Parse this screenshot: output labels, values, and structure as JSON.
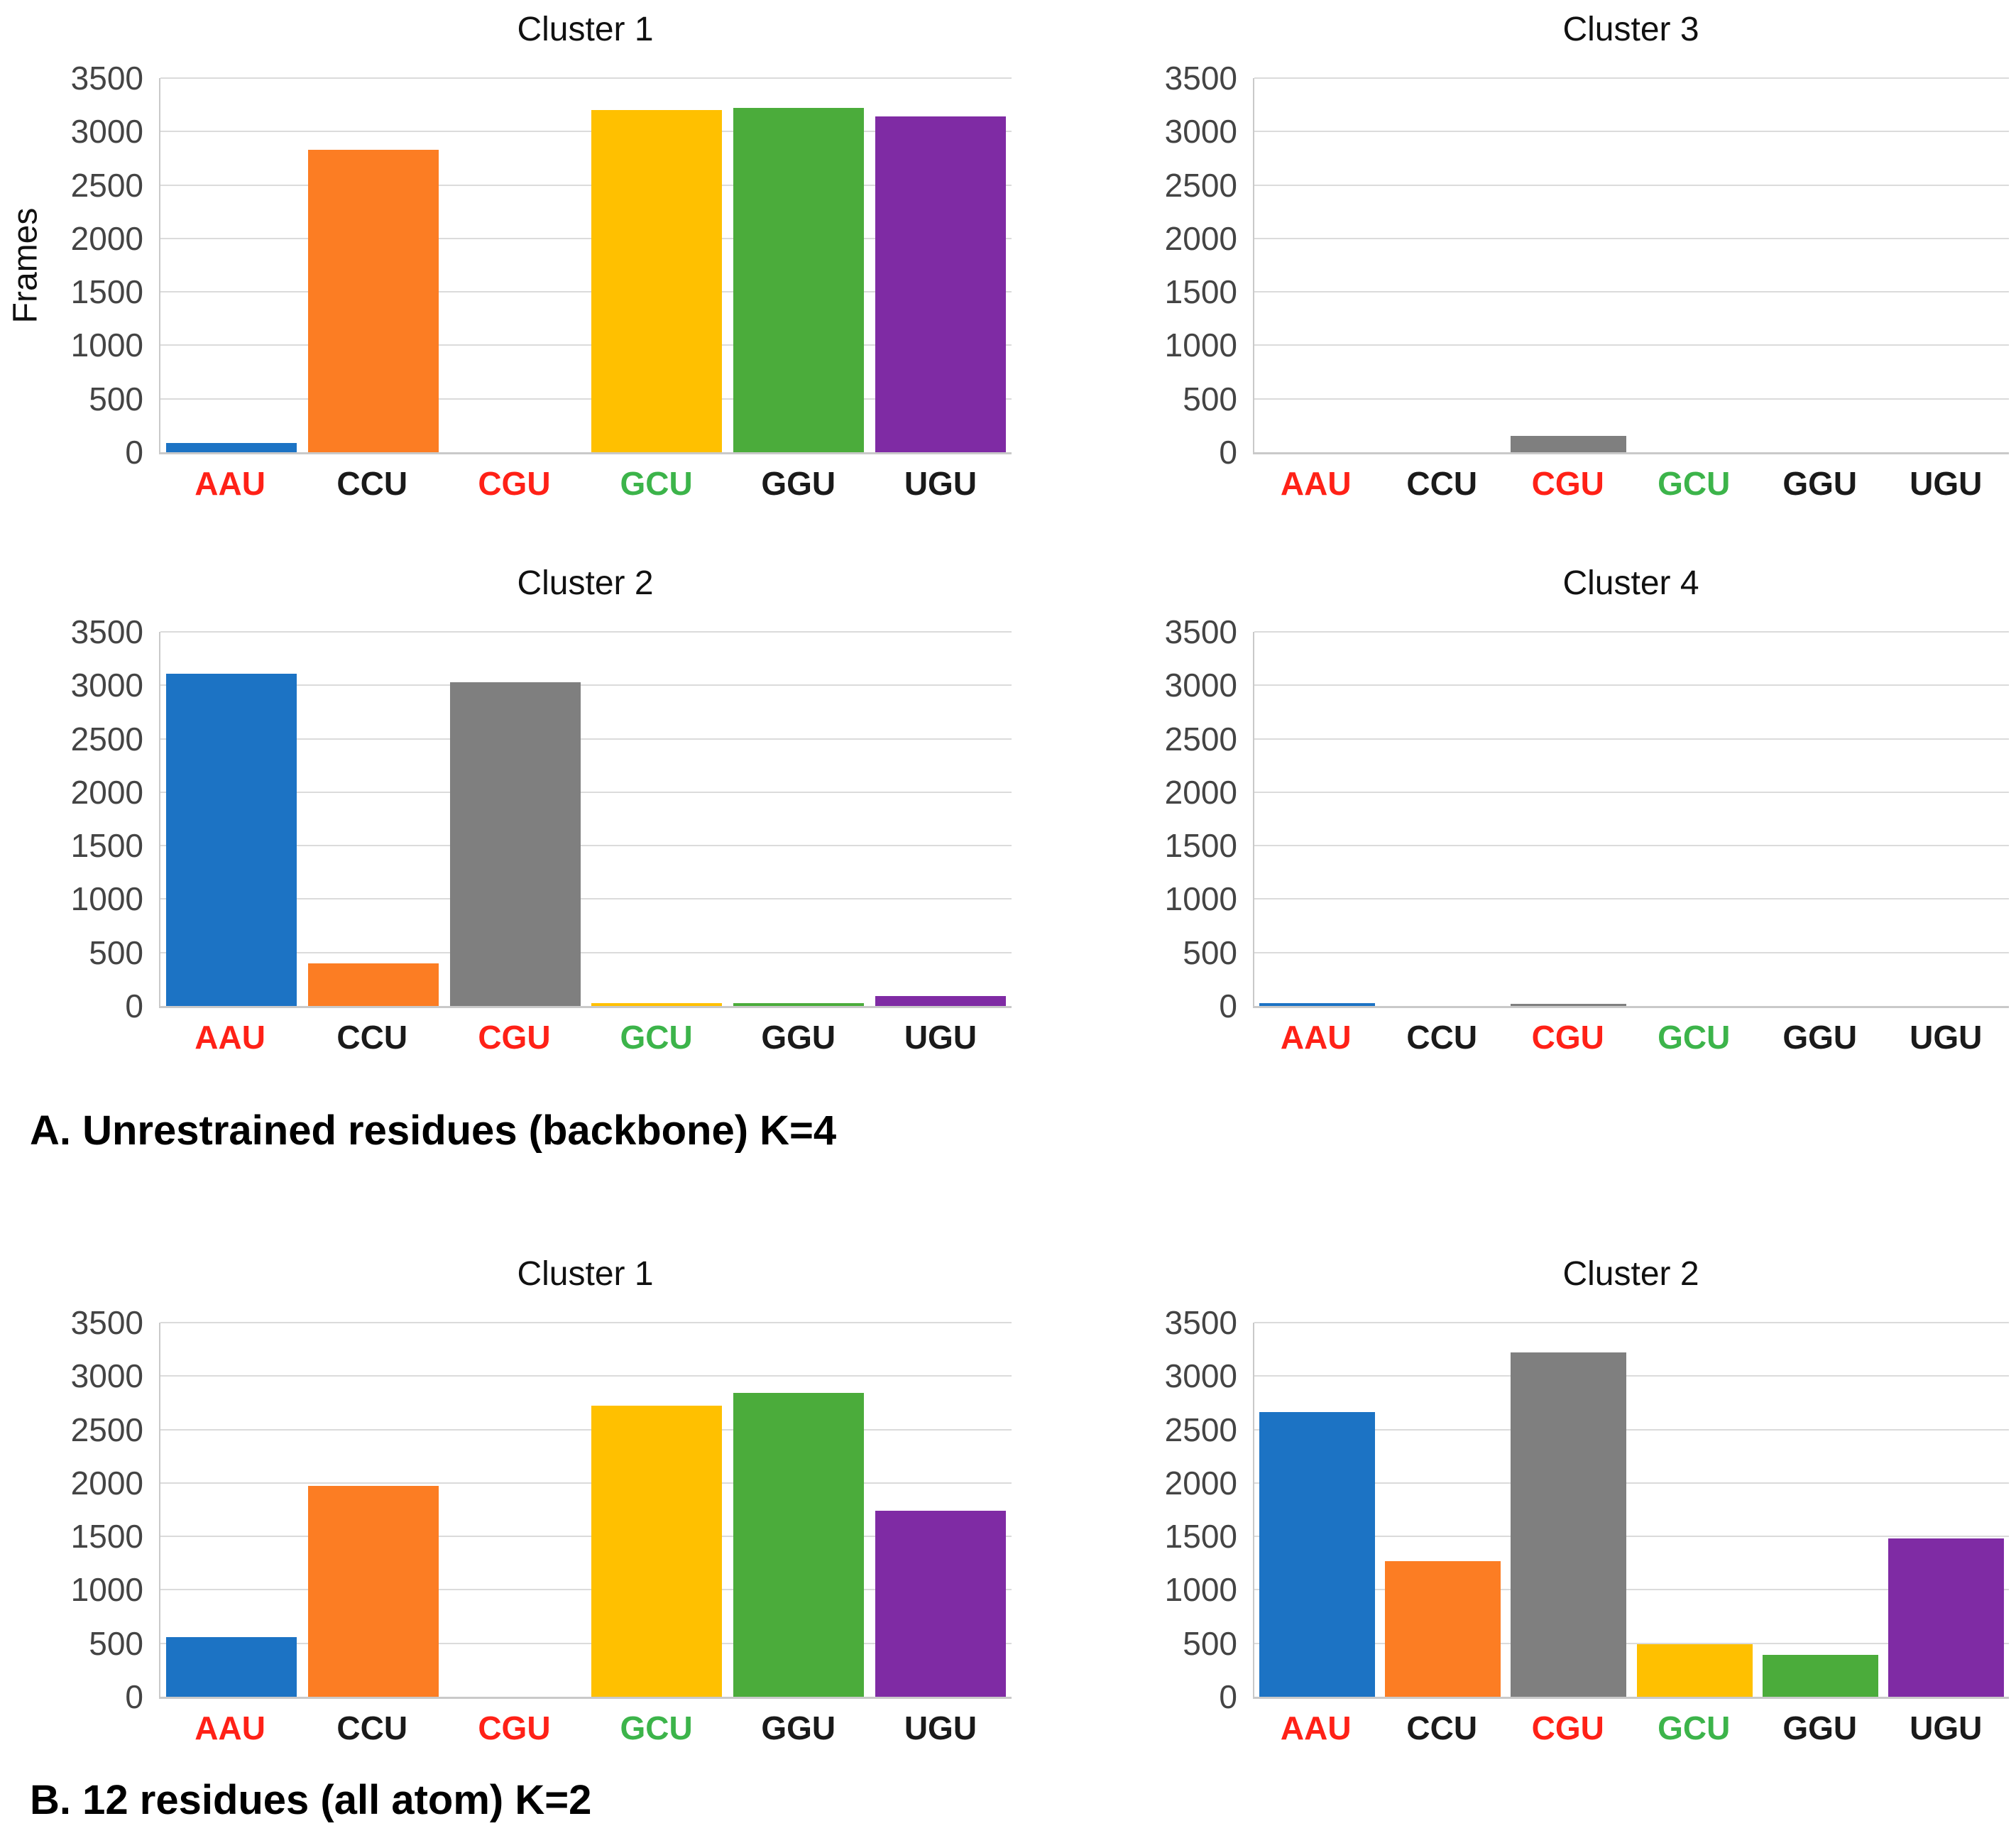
{
  "figure": {
    "section_a_label": "A. Unrestrained residues (backbone) K=4",
    "section_b_label": "B. 12 residues (all atom) K=2"
  },
  "style": {
    "bar_colors": [
      "#1C73C4",
      "#FC7D23",
      "#7F7F7F",
      "#FFC000",
      "#4BAC3B",
      "#7F2BA4"
    ],
    "category_label_colors": [
      "#FF2117",
      "#1A1A1A",
      "#FF2117",
      "#3CB44A",
      "#1A1A1A",
      "#1A1A1A"
    ],
    "grid_color": "#DBDBDB",
    "axis_color": "#C9C9C9",
    "tick_text_color": "#444444",
    "title_color": "#111111"
  },
  "chart_data": [
    {
      "type": "bar",
      "section": "A",
      "title": "Cluster 1",
      "ylabel": "Frames",
      "categories": [
        "AAU",
        "CCU",
        "CGU",
        "GCU",
        "GGU",
        "UGU"
      ],
      "values": [
        85,
        2830,
        0,
        3200,
        3220,
        3140
      ],
      "ylim": [
        0,
        3500
      ],
      "yticks": [
        0,
        500,
        1000,
        1500,
        2000,
        2500,
        3000,
        3500
      ],
      "grid": true,
      "legend": "none"
    },
    {
      "type": "bar",
      "section": "A",
      "title": "Cluster 3",
      "categories": [
        "AAU",
        "CCU",
        "CGU",
        "GCU",
        "GGU",
        "UGU"
      ],
      "values": [
        0,
        0,
        150,
        0,
        0,
        0
      ],
      "ylim": [
        0,
        3500
      ],
      "yticks": [
        0,
        500,
        1000,
        1500,
        2000,
        2500,
        3000,
        3500
      ],
      "grid": true,
      "legend": "none"
    },
    {
      "type": "bar",
      "section": "A",
      "title": "Cluster 2",
      "categories": [
        "AAU",
        "CCU",
        "CGU",
        "GCU",
        "GGU",
        "UGU"
      ],
      "values": [
        3110,
        400,
        3030,
        25,
        25,
        90
      ],
      "ylim": [
        0,
        3500
      ],
      "yticks": [
        0,
        500,
        1000,
        1500,
        2000,
        2500,
        3000,
        3500
      ],
      "grid": true,
      "legend": "none"
    },
    {
      "type": "bar",
      "section": "A",
      "title": "Cluster 4",
      "categories": [
        "AAU",
        "CCU",
        "CGU",
        "GCU",
        "GGU",
        "UGU"
      ],
      "values": [
        25,
        0,
        20,
        0,
        0,
        0
      ],
      "ylim": [
        0,
        3500
      ],
      "yticks": [
        0,
        500,
        1000,
        1500,
        2000,
        2500,
        3000,
        3500
      ],
      "grid": true,
      "legend": "none"
    },
    {
      "type": "bar",
      "section": "B",
      "title": "Cluster 1",
      "categories": [
        "AAU",
        "CCU",
        "CGU",
        "GCU",
        "GGU",
        "UGU"
      ],
      "values": [
        560,
        1970,
        0,
        2720,
        2840,
        1740
      ],
      "ylim": [
        0,
        3500
      ],
      "yticks": [
        0,
        500,
        1000,
        1500,
        2000,
        2500,
        3000,
        3500
      ],
      "grid": true,
      "legend": "none"
    },
    {
      "type": "bar",
      "section": "B",
      "title": "Cluster 2",
      "categories": [
        "AAU",
        "CCU",
        "CGU",
        "GCU",
        "GGU",
        "UGU"
      ],
      "values": [
        2660,
        1270,
        3220,
        490,
        390,
        1480
      ],
      "ylim": [
        0,
        3500
      ],
      "yticks": [
        0,
        500,
        1000,
        1500,
        2000,
        2500,
        3000,
        3500
      ],
      "grid": true,
      "legend": "none"
    }
  ]
}
